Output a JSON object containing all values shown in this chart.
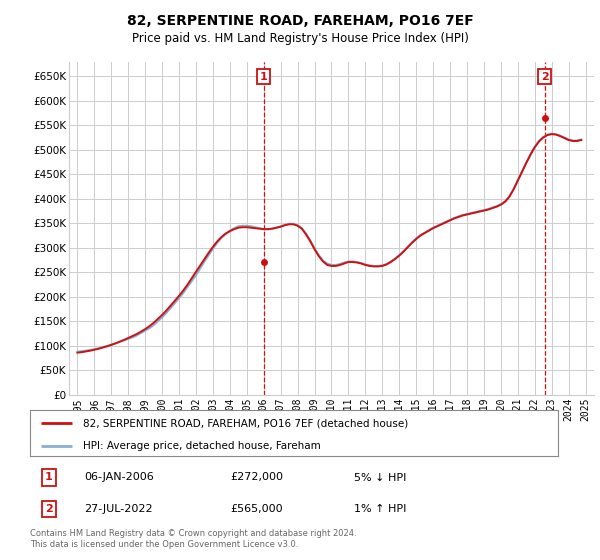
{
  "title": "82, SERPENTINE ROAD, FAREHAM, PO16 7EF",
  "subtitle": "Price paid vs. HM Land Registry's House Price Index (HPI)",
  "ylim": [
    0,
    680000
  ],
  "yticks": [
    0,
    50000,
    100000,
    150000,
    200000,
    250000,
    300000,
    350000,
    400000,
    450000,
    500000,
    550000,
    600000,
    650000
  ],
  "ytick_labels": [
    "£0",
    "£50K",
    "£100K",
    "£150K",
    "£200K",
    "£250K",
    "£300K",
    "£350K",
    "£400K",
    "£450K",
    "£500K",
    "£550K",
    "£600K",
    "£650K"
  ],
  "hpi_color": "#89afd4",
  "price_color": "#cc1111",
  "marker_color": "#cc1111",
  "vline_color": "#cc1111",
  "annotation_box_color": "#cc1111",
  "grid_color": "#cccccc",
  "background_color": "#ffffff",
  "legend_border_color": "#888888",
  "note1_date": "06-JAN-2006",
  "note1_price": "£272,000",
  "note1_info": "5% ↓ HPI",
  "note2_date": "27-JUL-2022",
  "note2_price": "£565,000",
  "note2_info": "1% ↑ HPI",
  "footer": "Contains HM Land Registry data © Crown copyright and database right 2024.\nThis data is licensed under the Open Government Licence v3.0.",
  "legend_label1": "82, SERPENTINE ROAD, FAREHAM, PO16 7EF (detached house)",
  "legend_label2": "HPI: Average price, detached house, Fareham",
  "hpi_x": [
    1995.0,
    1995.25,
    1995.5,
    1995.75,
    1996.0,
    1996.25,
    1996.5,
    1996.75,
    1997.0,
    1997.25,
    1997.5,
    1997.75,
    1998.0,
    1998.25,
    1998.5,
    1998.75,
    1999.0,
    1999.25,
    1999.5,
    1999.75,
    2000.0,
    2000.25,
    2000.5,
    2000.75,
    2001.0,
    2001.25,
    2001.5,
    2001.75,
    2002.0,
    2002.25,
    2002.5,
    2002.75,
    2003.0,
    2003.25,
    2003.5,
    2003.75,
    2004.0,
    2004.25,
    2004.5,
    2004.75,
    2005.0,
    2005.25,
    2005.5,
    2005.75,
    2006.0,
    2006.25,
    2006.5,
    2006.75,
    2007.0,
    2007.25,
    2007.5,
    2007.75,
    2008.0,
    2008.25,
    2008.5,
    2008.75,
    2009.0,
    2009.25,
    2009.5,
    2009.75,
    2010.0,
    2010.25,
    2010.5,
    2010.75,
    2011.0,
    2011.25,
    2011.5,
    2011.75,
    2012.0,
    2012.25,
    2012.5,
    2012.75,
    2013.0,
    2013.25,
    2013.5,
    2013.75,
    2014.0,
    2014.25,
    2014.5,
    2014.75,
    2015.0,
    2015.25,
    2015.5,
    2015.75,
    2016.0,
    2016.25,
    2016.5,
    2016.75,
    2017.0,
    2017.25,
    2017.5,
    2017.75,
    2018.0,
    2018.25,
    2018.5,
    2018.75,
    2019.0,
    2019.25,
    2019.5,
    2019.75,
    2020.0,
    2020.25,
    2020.5,
    2020.75,
    2021.0,
    2021.25,
    2021.5,
    2021.75,
    2022.0,
    2022.25,
    2022.5,
    2022.75,
    2023.0,
    2023.25,
    2023.5,
    2023.75,
    2024.0,
    2024.25,
    2024.5,
    2024.75
  ],
  "hpi_y": [
    88000,
    89000,
    90000,
    91500,
    93000,
    95000,
    97500,
    99500,
    102000,
    105000,
    108000,
    111000,
    114000,
    117000,
    121000,
    126000,
    131000,
    136000,
    142000,
    150000,
    158000,
    167000,
    177000,
    187000,
    197000,
    208000,
    220000,
    232000,
    244000,
    258000,
    272000,
    285000,
    298000,
    310000,
    320000,
    328000,
    335000,
    340000,
    344000,
    345000,
    345000,
    344000,
    342000,
    340000,
    338000,
    338000,
    339000,
    341000,
    344000,
    347000,
    349000,
    349000,
    346000,
    340000,
    329000,
    315000,
    299000,
    285000,
    274000,
    268000,
    265000,
    265000,
    267000,
    270000,
    272000,
    272000,
    271000,
    269000,
    266000,
    264000,
    263000,
    263000,
    264000,
    267000,
    272000,
    278000,
    285000,
    293000,
    302000,
    311000,
    319000,
    326000,
    331000,
    336000,
    341000,
    345000,
    349000,
    353000,
    357000,
    361000,
    364000,
    367000,
    369000,
    371000,
    373000,
    375000,
    377000,
    379000,
    382000,
    385000,
    389000,
    395000,
    405000,
    420000,
    438000,
    456000,
    474000,
    491000,
    506000,
    518000,
    526000,
    531000,
    533000,
    532000,
    529000,
    525000,
    521000,
    519000,
    519000,
    521000
  ],
  "price_x": [
    1995.0,
    1995.25,
    1995.5,
    1995.75,
    1996.0,
    1996.25,
    1996.5,
    1996.75,
    1997.0,
    1997.25,
    1997.5,
    1997.75,
    1998.0,
    1998.25,
    1998.5,
    1998.75,
    1999.0,
    1999.25,
    1999.5,
    1999.75,
    2000.0,
    2000.25,
    2000.5,
    2000.75,
    2001.0,
    2001.25,
    2001.5,
    2001.75,
    2002.0,
    2002.25,
    2002.5,
    2002.75,
    2003.0,
    2003.25,
    2003.5,
    2003.75,
    2004.0,
    2004.25,
    2004.5,
    2004.75,
    2005.0,
    2005.25,
    2005.5,
    2005.75,
    2006.0,
    2006.25,
    2006.5,
    2006.75,
    2007.0,
    2007.25,
    2007.5,
    2007.75,
    2008.0,
    2008.25,
    2008.5,
    2008.75,
    2009.0,
    2009.25,
    2009.5,
    2009.75,
    2010.0,
    2010.25,
    2010.5,
    2010.75,
    2011.0,
    2011.25,
    2011.5,
    2011.75,
    2012.0,
    2012.25,
    2012.5,
    2012.75,
    2013.0,
    2013.25,
    2013.5,
    2013.75,
    2014.0,
    2014.25,
    2014.5,
    2014.75,
    2015.0,
    2015.25,
    2015.5,
    2015.75,
    2016.0,
    2016.25,
    2016.5,
    2016.75,
    2017.0,
    2017.25,
    2017.5,
    2017.75,
    2018.0,
    2018.25,
    2018.5,
    2018.75,
    2019.0,
    2019.25,
    2019.5,
    2019.75,
    2020.0,
    2020.25,
    2020.5,
    2020.75,
    2021.0,
    2021.25,
    2021.5,
    2021.75,
    2022.0,
    2022.25,
    2022.5,
    2022.75,
    2023.0,
    2023.25,
    2023.5,
    2023.75,
    2024.0,
    2024.25,
    2024.5,
    2024.75
  ],
  "price_y": [
    86000,
    87000,
    88500,
    90000,
    92000,
    94000,
    96500,
    99000,
    102000,
    105000,
    108500,
    112000,
    116000,
    120000,
    124000,
    129000,
    134000,
    140000,
    147000,
    155000,
    163000,
    172000,
    182000,
    192000,
    202000,
    213000,
    225000,
    238000,
    251000,
    264000,
    277000,
    290000,
    302000,
    313000,
    322000,
    329000,
    334000,
    338000,
    341000,
    342000,
    342000,
    341000,
    340000,
    339000,
    338000,
    338000,
    339000,
    341000,
    343000,
    346000,
    348000,
    348000,
    345000,
    339000,
    327000,
    313000,
    297000,
    283000,
    272000,
    265000,
    263000,
    263000,
    265000,
    268000,
    271000,
    271000,
    270000,
    268000,
    265000,
    263000,
    262000,
    262000,
    263000,
    266000,
    271000,
    277000,
    284000,
    292000,
    301000,
    310000,
    318000,
    325000,
    330000,
    335000,
    340000,
    344000,
    348000,
    352000,
    356000,
    360000,
    363000,
    366000,
    368000,
    370000,
    372000,
    374000,
    376000,
    378000,
    381000,
    384000,
    388000,
    394000,
    404000,
    419000,
    437000,
    455000,
    473000,
    490000,
    505000,
    517000,
    525000,
    530000,
    532000,
    531000,
    528000,
    524000,
    520000,
    518000,
    518000,
    520000
  ],
  "vline1_x": 2006.0,
  "vline2_x": 2022.58,
  "marker1_x": 2006.0,
  "marker1_y": 272000,
  "marker2_x": 2022.58,
  "marker2_y": 565000,
  "xtick_years": [
    1995,
    1996,
    1997,
    1998,
    1999,
    2000,
    2001,
    2002,
    2003,
    2004,
    2005,
    2006,
    2007,
    2008,
    2009,
    2010,
    2011,
    2012,
    2013,
    2014,
    2015,
    2016,
    2017,
    2018,
    2019,
    2020,
    2021,
    2022,
    2023,
    2024,
    2025
  ],
  "xlim_left": 1994.5,
  "xlim_right": 2025.5
}
